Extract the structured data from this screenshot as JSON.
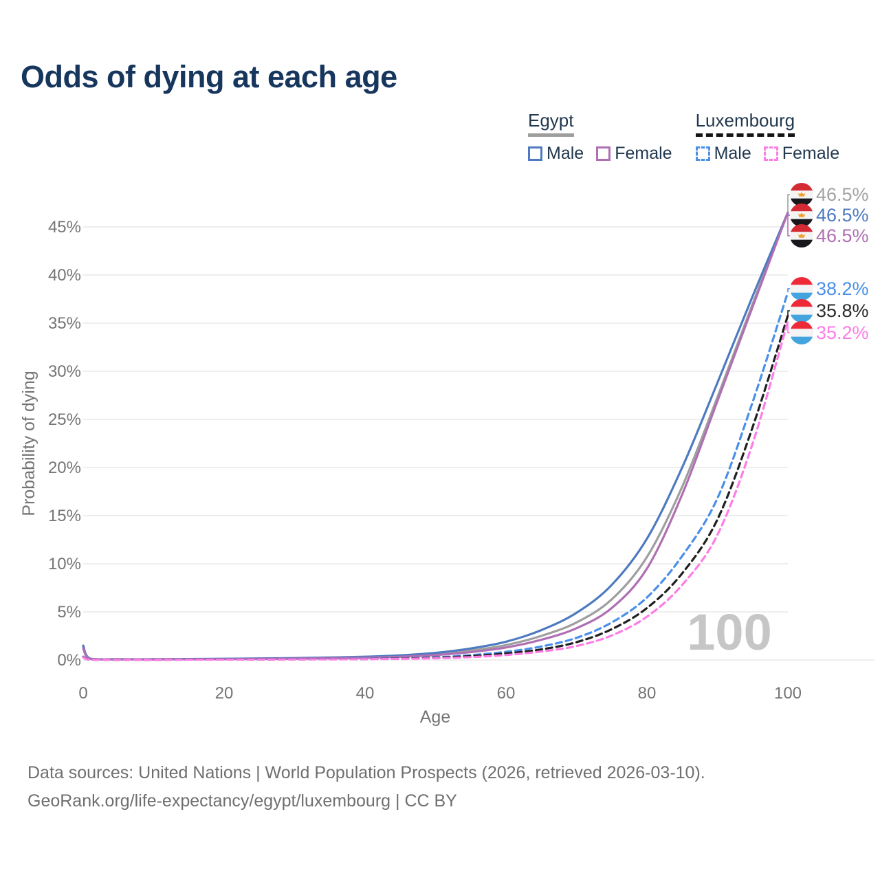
{
  "title": "Odds of dying at each age",
  "legend": {
    "groups": [
      {
        "label": "Egypt",
        "underline_style": "solid",
        "underline_color": "#9e9e9e",
        "items": [
          {
            "label": "Male",
            "color": "#4d7ac0",
            "dashed": false
          },
          {
            "label": "Female",
            "color": "#b06fb3",
            "dashed": false
          }
        ]
      },
      {
        "label": "Luxembourg",
        "underline_style": "dashed",
        "underline_color": "#141414",
        "items": [
          {
            "label": "Male",
            "color": "#4a8fe8",
            "dashed": true
          },
          {
            "label": "Female",
            "color": "#fe7ce5",
            "dashed": true
          }
        ]
      }
    ]
  },
  "chart_data": {
    "type": "line",
    "title": "Odds of dying at each age",
    "xlabel": "Age",
    "ylabel": "Probability of dying",
    "xlim": [
      0,
      100
    ],
    "ylim": [
      0,
      45
    ],
    "x_ticks": [
      0,
      20,
      40,
      60,
      80,
      100
    ],
    "y_ticks": [
      0,
      5,
      10,
      15,
      20,
      25,
      30,
      35,
      40,
      45
    ],
    "y_tick_suffix": "%",
    "grid": true,
    "legend_position": "top-right",
    "watermark": "100",
    "watermark_color": "#c6c6c6",
    "series": [
      {
        "name": "Egypt — Both sexes",
        "country": "Egypt",
        "sex": "Both",
        "color": "#9e9e9e",
        "dashed": false,
        "flag": "egypt",
        "end_label": "46.5%",
        "end_value": 46.5,
        "end_label_color": "#a3a3a3",
        "points": [
          [
            0,
            1.35
          ],
          [
            1,
            0.12
          ],
          [
            5,
            0.07
          ],
          [
            10,
            0.07
          ],
          [
            15,
            0.09
          ],
          [
            20,
            0.11
          ],
          [
            25,
            0.13
          ],
          [
            30,
            0.17
          ],
          [
            35,
            0.22
          ],
          [
            40,
            0.28
          ],
          [
            45,
            0.4
          ],
          [
            50,
            0.62
          ],
          [
            55,
            0.98
          ],
          [
            60,
            1.55
          ],
          [
            65,
            2.5
          ],
          [
            70,
            3.9
          ],
          [
            75,
            6.3
          ],
          [
            80,
            10.7
          ],
          [
            85,
            18.0
          ],
          [
            90,
            27.3
          ],
          [
            95,
            37.0
          ],
          [
            100,
            46.5
          ]
        ]
      },
      {
        "name": "Egypt — Male",
        "country": "Egypt",
        "sex": "Male",
        "color": "#4d7ac0",
        "dashed": false,
        "flag": "egypt",
        "end_label": "46.5%",
        "end_value": 46.5,
        "end_label_color": "#4d7ac0",
        "points": [
          [
            0,
            1.5
          ],
          [
            1,
            0.14
          ],
          [
            5,
            0.08
          ],
          [
            10,
            0.08
          ],
          [
            15,
            0.1
          ],
          [
            20,
            0.13
          ],
          [
            25,
            0.16
          ],
          [
            30,
            0.2
          ],
          [
            35,
            0.26
          ],
          [
            40,
            0.34
          ],
          [
            45,
            0.48
          ],
          [
            50,
            0.74
          ],
          [
            55,
            1.2
          ],
          [
            60,
            1.9
          ],
          [
            65,
            3.1
          ],
          [
            70,
            4.9
          ],
          [
            75,
            7.8
          ],
          [
            80,
            12.6
          ],
          [
            85,
            20.0
          ],
          [
            90,
            28.8
          ],
          [
            95,
            37.8
          ],
          [
            100,
            46.5
          ]
        ]
      },
      {
        "name": "Egypt — Female",
        "country": "Egypt",
        "sex": "Female",
        "color": "#b06fb3",
        "dashed": false,
        "flag": "egypt",
        "end_label": "46.5%",
        "end_value": 46.5,
        "end_label_color": "#b06fb3",
        "points": [
          [
            0,
            1.2
          ],
          [
            1,
            0.11
          ],
          [
            5,
            0.06
          ],
          [
            10,
            0.06
          ],
          [
            15,
            0.08
          ],
          [
            20,
            0.09
          ],
          [
            25,
            0.11
          ],
          [
            30,
            0.14
          ],
          [
            35,
            0.18
          ],
          [
            40,
            0.24
          ],
          [
            45,
            0.34
          ],
          [
            50,
            0.52
          ],
          [
            55,
            0.82
          ],
          [
            60,
            1.3
          ],
          [
            65,
            2.1
          ],
          [
            70,
            3.3
          ],
          [
            75,
            5.4
          ],
          [
            80,
            9.5
          ],
          [
            85,
            17.2
          ],
          [
            90,
            26.9
          ],
          [
            95,
            36.7
          ],
          [
            100,
            46.5
          ]
        ]
      },
      {
        "name": "Luxembourg — Male",
        "country": "Luxembourg",
        "sex": "Male",
        "color": "#4a8fe8",
        "dashed": true,
        "flag": "luxembourg",
        "end_label": "38.2%",
        "end_value": 38.2,
        "end_label_color": "#4a8fe8",
        "points": [
          [
            0,
            0.35
          ],
          [
            1,
            0.04
          ],
          [
            5,
            0.02
          ],
          [
            10,
            0.02
          ],
          [
            15,
            0.05
          ],
          [
            20,
            0.06
          ],
          [
            25,
            0.07
          ],
          [
            30,
            0.08
          ],
          [
            35,
            0.1
          ],
          [
            40,
            0.13
          ],
          [
            45,
            0.18
          ],
          [
            50,
            0.28
          ],
          [
            55,
            0.5
          ],
          [
            60,
            0.85
          ],
          [
            65,
            1.4
          ],
          [
            70,
            2.3
          ],
          [
            75,
            3.9
          ],
          [
            80,
            6.5
          ],
          [
            85,
            10.8
          ],
          [
            90,
            16.8
          ],
          [
            95,
            26.8
          ],
          [
            100,
            38.2
          ]
        ]
      },
      {
        "name": "Luxembourg — Both sexes",
        "country": "Luxembourg",
        "sex": "Both",
        "color": "#1f1f1f",
        "dashed": true,
        "flag": "luxembourg",
        "end_label": "35.8%",
        "end_value": 35.8,
        "end_label_color": "#2a2a2a",
        "points": [
          [
            0,
            0.3
          ],
          [
            1,
            0.03
          ],
          [
            5,
            0.02
          ],
          [
            10,
            0.02
          ],
          [
            15,
            0.04
          ],
          [
            20,
            0.05
          ],
          [
            25,
            0.06
          ],
          [
            30,
            0.07
          ],
          [
            35,
            0.08
          ],
          [
            40,
            0.1
          ],
          [
            45,
            0.15
          ],
          [
            50,
            0.23
          ],
          [
            55,
            0.4
          ],
          [
            60,
            0.68
          ],
          [
            65,
            1.1
          ],
          [
            70,
            1.85
          ],
          [
            75,
            3.2
          ],
          [
            80,
            5.4
          ],
          [
            85,
            9.0
          ],
          [
            90,
            14.6
          ],
          [
            95,
            24.2
          ],
          [
            100,
            35.8
          ]
        ]
      },
      {
        "name": "Luxembourg — Female",
        "country": "Luxembourg",
        "sex": "Female",
        "color": "#fe7ce5",
        "dashed": true,
        "flag": "luxembourg",
        "end_label": "35.2%",
        "end_value": 35.2,
        "end_label_color": "#fe7ce5",
        "points": [
          [
            0,
            0.28
          ],
          [
            1,
            0.03
          ],
          [
            5,
            0.015
          ],
          [
            10,
            0.015
          ],
          [
            15,
            0.03
          ],
          [
            20,
            0.04
          ],
          [
            25,
            0.05
          ],
          [
            30,
            0.06
          ],
          [
            35,
            0.07
          ],
          [
            40,
            0.09
          ],
          [
            45,
            0.12
          ],
          [
            50,
            0.18
          ],
          [
            55,
            0.3
          ],
          [
            60,
            0.52
          ],
          [
            65,
            0.88
          ],
          [
            70,
            1.45
          ],
          [
            75,
            2.55
          ],
          [
            80,
            4.5
          ],
          [
            85,
            7.8
          ],
          [
            90,
            13.0
          ],
          [
            95,
            22.5
          ],
          [
            100,
            35.2
          ]
        ]
      }
    ],
    "flag_colors": {
      "egypt": {
        "top": "#d42a33",
        "middle": "#f4f4f4",
        "bottom": "#17171c",
        "emblem": "#f0a030"
      },
      "luxembourg": {
        "top": "#ee2a39",
        "middle": "#f4f4f4",
        "bottom": "#43a4e0"
      }
    }
  },
  "footer": {
    "line1": "Data sources: United Nations | World Population Prospects (2026, retrieved 2026-03-10).",
    "line2": "GeoRank.org/life-expectancy/egypt/luxembourg | CC BY"
  }
}
